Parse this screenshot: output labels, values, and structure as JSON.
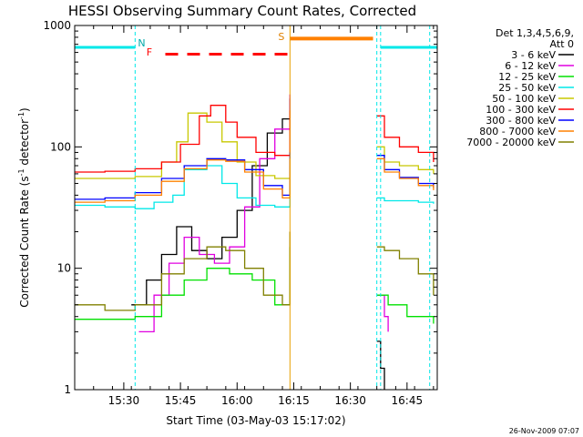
{
  "chart_data": {
    "type": "line",
    "title": "HESSI Observing Summary Count Rates, Corrected",
    "xlabel": "Start Time (03-May-03 15:17:02)",
    "ylabel": "Corrected Count Rate (s",
    "ylabel_sup1": "-1",
    "ylabel_mid": " detector",
    "ylabel_sup2": "-1",
    "ylabel_end": ")",
    "y_scale": "log",
    "ylim": [
      1,
      1000
    ],
    "xlim": [
      "15:17",
      "16:53"
    ],
    "x_tick_labels": [
      "15:30",
      "15:45",
      "16:00",
      "16:15",
      "16:30",
      "16:45"
    ],
    "y_tick_labels": [
      "1",
      "10",
      "100",
      "1000"
    ],
    "legend_header": [
      "Det 1,3,4,5,6,9,",
      "Att 0"
    ],
    "legend_position": "right",
    "footer_date": "26-Nov-2009 07:07",
    "markers": {
      "night_letter": "N",
      "flare_letter": "F",
      "saa_letter": "S"
    },
    "series": [
      {
        "name": "3 - 6 keV",
        "color": "#000000",
        "x": [
          "15:32",
          "15:36",
          "15:40",
          "15:44",
          "15:48",
          "15:52",
          "15:56",
          "16:00",
          "16:04",
          "16:08",
          "16:12",
          "16:14"
        ],
        "y": [
          5,
          8,
          13,
          22,
          14,
          12,
          18,
          30,
          70,
          130,
          170,
          250
        ]
      },
      {
        "name": "6 - 12 keV",
        "color": "#e000e0",
        "x": [
          "15:34",
          "15:38",
          "15:42",
          "15:46",
          "15:50",
          "15:54",
          "15:58",
          "16:02",
          "16:06",
          "16:10",
          "16:14"
        ],
        "y": [
          3,
          6,
          11,
          18,
          13,
          11,
          15,
          32,
          80,
          140,
          270
        ]
      },
      {
        "name": "12 - 25 keV",
        "color": "#00e000",
        "x": [
          "15:17",
          "15:25",
          "15:33",
          "15:40",
          "15:46",
          "15:52",
          "15:58",
          "16:04",
          "16:10",
          "16:14"
        ],
        "y": [
          3.8,
          3.8,
          4,
          6,
          8,
          10,
          9,
          8,
          5,
          15
        ]
      },
      {
        "name": "25 - 50 keV",
        "color": "#00e8e8",
        "x": [
          "15:17",
          "15:25",
          "15:33",
          "15:38",
          "15:43",
          "15:46",
          "15:52",
          "15:56",
          "16:00",
          "16:05",
          "16:10",
          "16:14"
        ],
        "y": [
          33,
          32,
          31,
          35,
          40,
          65,
          70,
          50,
          38,
          33,
          32,
          45
        ]
      },
      {
        "name": "50 - 100 keV",
        "color": "#c8c800",
        "x": [
          "15:17",
          "15:25",
          "15:33",
          "15:40",
          "15:44",
          "15:47",
          "15:52",
          "15:56",
          "16:00",
          "16:05",
          "16:10",
          "16:14"
        ],
        "y": [
          55,
          55,
          57,
          75,
          110,
          190,
          160,
          110,
          75,
          58,
          55,
          70
        ]
      },
      {
        "name": "100 - 300 keV",
        "color": "#ff0000",
        "x": [
          "15:17",
          "15:25",
          "15:33",
          "15:40",
          "15:45",
          "15:50",
          "15:53",
          "15:57",
          "16:00",
          "16:05",
          "16:10",
          "16:14"
        ],
        "y": [
          62,
          63,
          66,
          75,
          105,
          180,
          220,
          160,
          120,
          90,
          85,
          200
        ]
      },
      {
        "name": "300 - 800 keV",
        "color": "#0000ff",
        "x": [
          "15:17",
          "15:25",
          "15:33",
          "15:40",
          "15:46",
          "15:52",
          "15:57",
          "16:02",
          "16:07",
          "16:12",
          "16:14"
        ],
        "y": [
          37,
          38,
          42,
          55,
          70,
          80,
          78,
          65,
          48,
          40,
          90
        ]
      },
      {
        "name": "800 - 7000 keV",
        "color": "#ff8000",
        "x": [
          "15:17",
          "15:25",
          "15:33",
          "15:40",
          "15:46",
          "15:52",
          "15:57",
          "16:02",
          "16:07",
          "16:12",
          "16:14"
        ],
        "y": [
          35,
          36,
          40,
          52,
          66,
          78,
          76,
          62,
          45,
          38,
          80
        ]
      },
      {
        "name": "7000 - 20000 keV",
        "color": "#808000",
        "x": [
          "15:17",
          "15:25",
          "15:33",
          "15:40",
          "15:46",
          "15:52",
          "15:57",
          "16:02",
          "16:07",
          "16:12",
          "16:14"
        ],
        "y": [
          5,
          4.5,
          5,
          9,
          12,
          15,
          14,
          10,
          6,
          5,
          20
        ]
      }
    ],
    "series_after_gap": [
      {
        "name": "3 - 6 keV",
        "color": "#000000",
        "x": [
          "16:37",
          "16:38",
          "16:39"
        ],
        "y": [
          2.5,
          1.5,
          1
        ]
      },
      {
        "name": "6 - 12 keV",
        "color": "#e000e0",
        "x": [
          "16:37",
          "16:39",
          "16:40"
        ],
        "y": [
          6,
          4,
          3
        ]
      },
      {
        "name": "12 - 25 keV",
        "color": "#00e000",
        "x": [
          "16:37",
          "16:40",
          "16:45",
          "16:50",
          "16:52"
        ],
        "y": [
          6,
          5,
          4,
          4,
          3.5
        ]
      },
      {
        "name": "25 - 50 keV",
        "color": "#00e8e8",
        "x": [
          "16:37",
          "16:39",
          "16:43",
          "16:48",
          "16:52"
        ],
        "y": [
          38,
          36,
          36,
          35,
          34
        ]
      },
      {
        "name": "50 - 100 keV",
        "color": "#c8c800",
        "x": [
          "16:37",
          "16:39",
          "16:43",
          "16:48",
          "16:52"
        ],
        "y": [
          100,
          75,
          70,
          65,
          60
        ]
      },
      {
        "name": "100 - 300 keV",
        "color": "#ff0000",
        "x": [
          "16:37",
          "16:39",
          "16:43",
          "16:48",
          "16:52"
        ],
        "y": [
          180,
          120,
          100,
          90,
          75
        ]
      },
      {
        "name": "300 - 800 keV",
        "color": "#0000ff",
        "x": [
          "16:37",
          "16:39",
          "16:43",
          "16:48",
          "16:52"
        ],
        "y": [
          85,
          65,
          56,
          50,
          46
        ]
      },
      {
        "name": "800 - 7000 keV",
        "color": "#ff8000",
        "x": [
          "16:37",
          "16:39",
          "16:43",
          "16:48",
          "16:52"
        ],
        "y": [
          80,
          62,
          55,
          48,
          44
        ]
      },
      {
        "name": "7000 - 20000 keV",
        "color": "#808000",
        "x": [
          "16:37",
          "16:39",
          "16:43",
          "16:48",
          "16:52"
        ],
        "y": [
          15,
          14,
          12,
          9,
          6
        ]
      }
    ]
  }
}
